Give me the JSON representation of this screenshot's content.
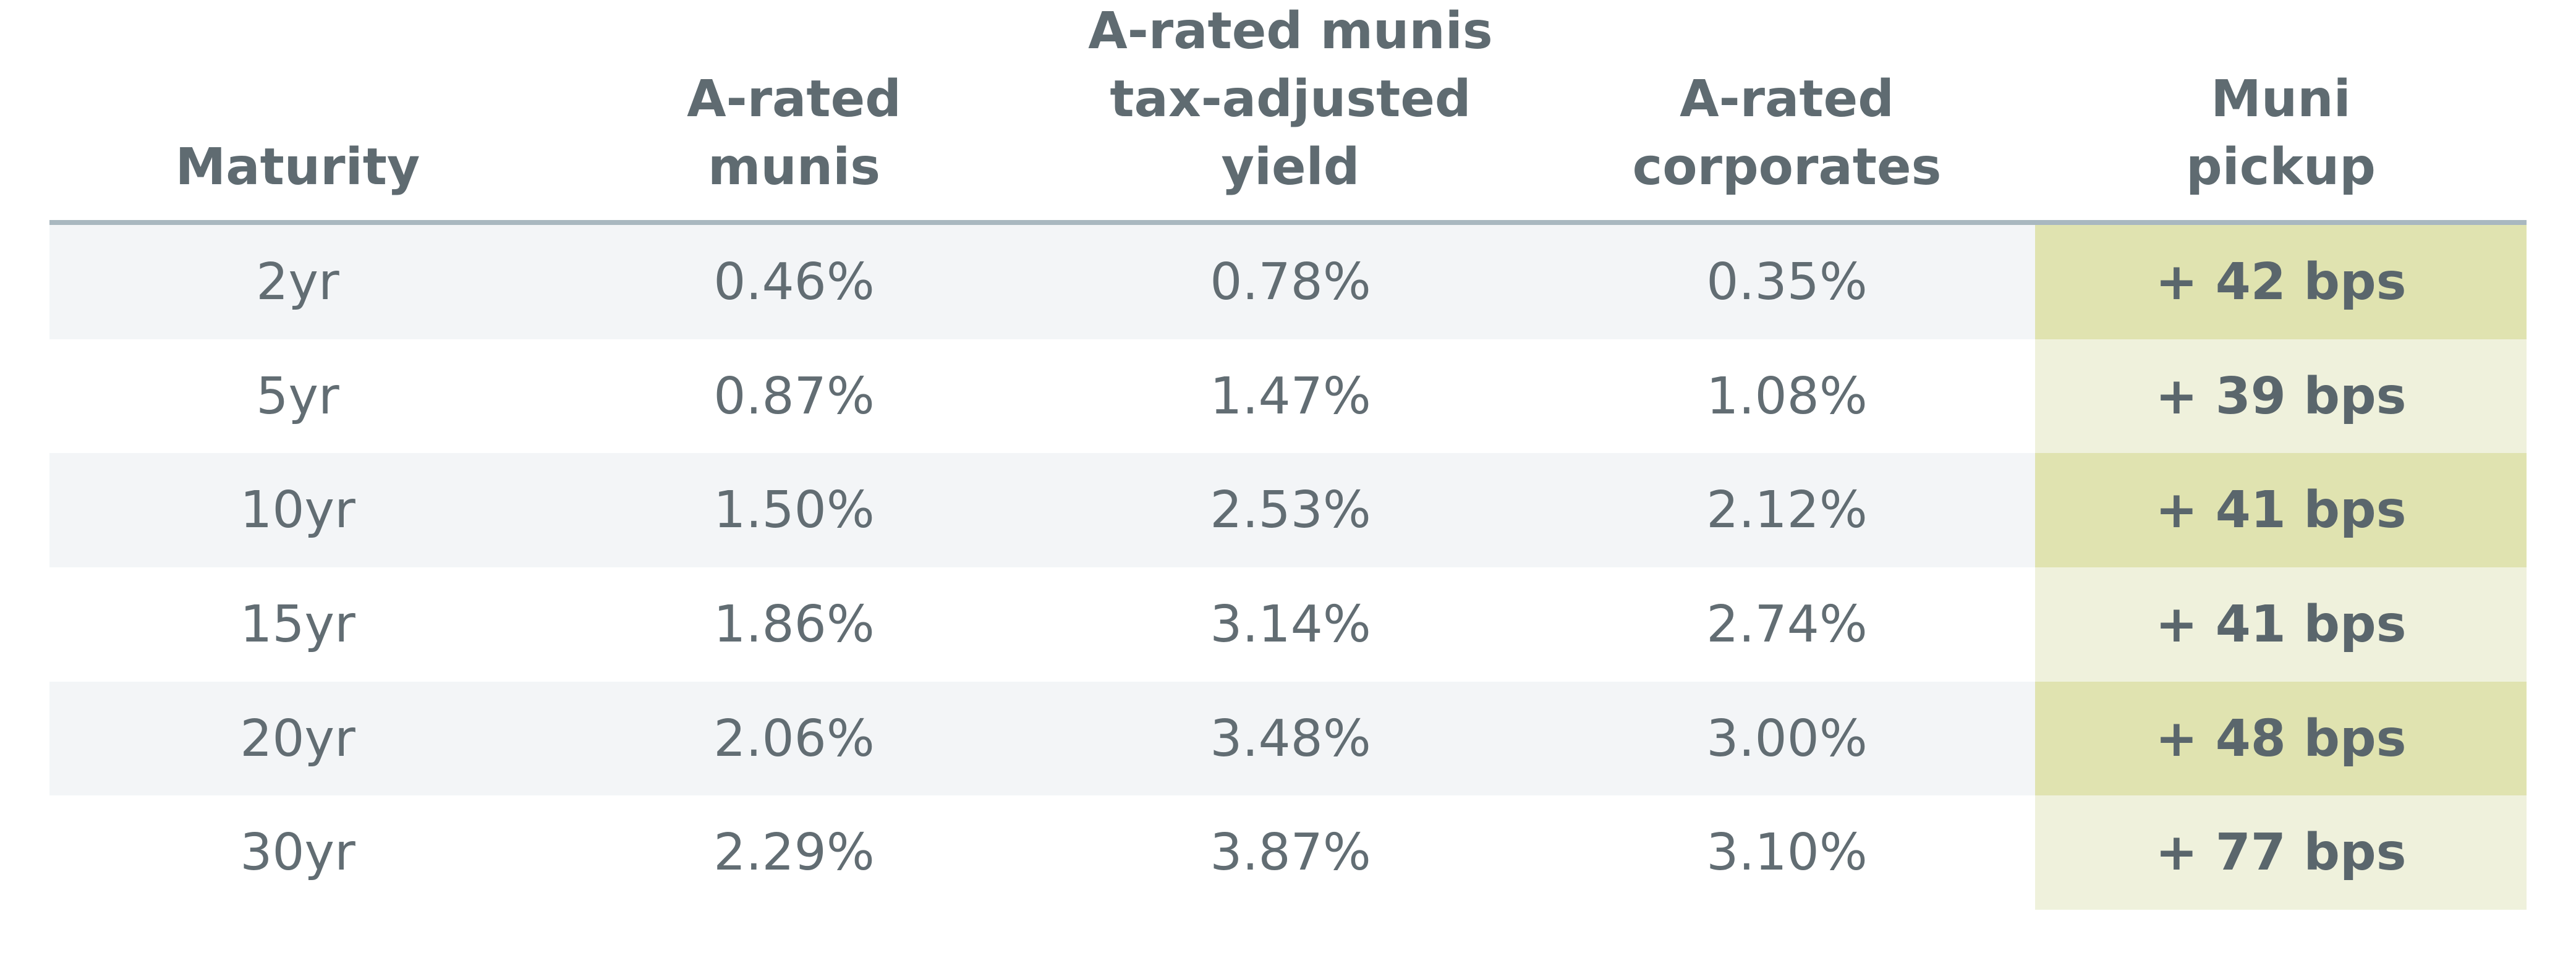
{
  "chart_data": {
    "type": "table",
    "columns": [
      "Maturity",
      "A-rated\nmunis",
      "A-rated munis\ntax-adjusted yield",
      "A-rated\ncorporates",
      "Muni\npickup"
    ],
    "rows": [
      [
        "2yr",
        "0.46%",
        "0.78%",
        "0.35%",
        "+ 42 bps"
      ],
      [
        "5yr",
        "0.87%",
        "1.47%",
        "1.08%",
        "+ 39 bps"
      ],
      [
        "10yr",
        "1.50%",
        "2.53%",
        "2.12%",
        "+ 41 bps"
      ],
      [
        "15yr",
        "1.86%",
        "3.14%",
        "2.74%",
        "+ 41 bps"
      ],
      [
        "20yr",
        "2.06%",
        "3.48%",
        "3.00%",
        "+ 48 bps"
      ],
      [
        "30yr",
        "2.29%",
        "3.87%",
        "3.10%",
        "+ 77 bps"
      ]
    ]
  },
  "colors": {
    "header_text": "#5f6b71",
    "body_text": "#626d73",
    "header_rule": "#a9b8c0",
    "row_shade": "#f3f5f7",
    "pickup_shade_dark": "#e0e3b0",
    "pickup_shade_light": "#eff1dc"
  }
}
